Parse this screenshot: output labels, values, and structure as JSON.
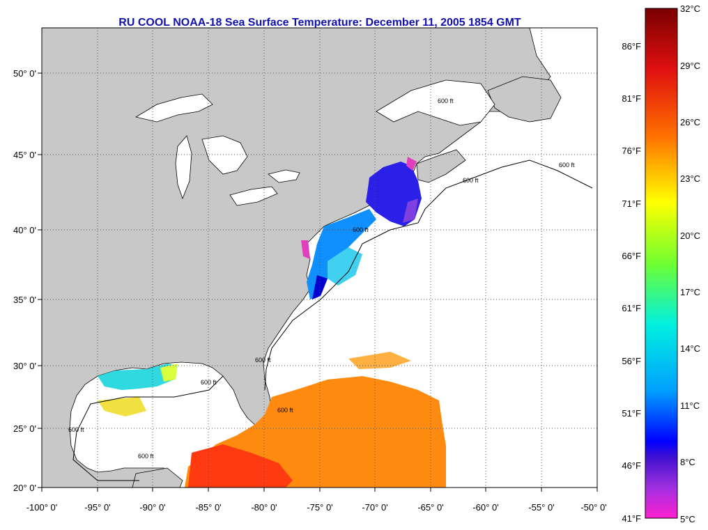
{
  "title": "RU COOL  NOAA-18  Sea Surface Temperature:  December 11, 2005 1854 GMT",
  "map": {
    "lat_labels": [
      "20° 0'",
      "25° 0'",
      "30° 0'",
      "35° 0'",
      "40° 0'",
      "45° 0'",
      "50° 0'"
    ],
    "lon_labels": [
      "-100° 0'",
      "-95° 0'",
      "-90° 0'",
      "-85° 0'",
      "-80° 0'",
      "-75° 0'",
      "-70° 0'",
      "-65° 0'",
      "-60° 0'",
      "-55° 0'",
      "-50° 0'"
    ],
    "contour_label": "600 ft",
    "colors": {
      "land": "#c8c8c8",
      "ocean_no_data": "#ffffff",
      "grid": "#000000"
    }
  },
  "colorbar": {
    "celsius_labels": [
      "32°C",
      "29°C",
      "26°C",
      "23°C",
      "20°C",
      "17°C",
      "14°C",
      "11°C",
      "8°C",
      "5°C"
    ],
    "fahrenheit_labels": [
      "86°F",
      "81°F",
      "76°F",
      "71°F",
      "66°F",
      "61°F",
      "56°F",
      "51°F",
      "46°F",
      "41°F"
    ],
    "celsius_values": [
      32,
      29,
      26,
      23,
      20,
      17,
      14,
      11,
      8,
      5
    ],
    "fahrenheit_values": [
      86,
      81,
      76,
      71,
      66,
      61,
      56,
      51,
      46,
      41
    ]
  }
}
